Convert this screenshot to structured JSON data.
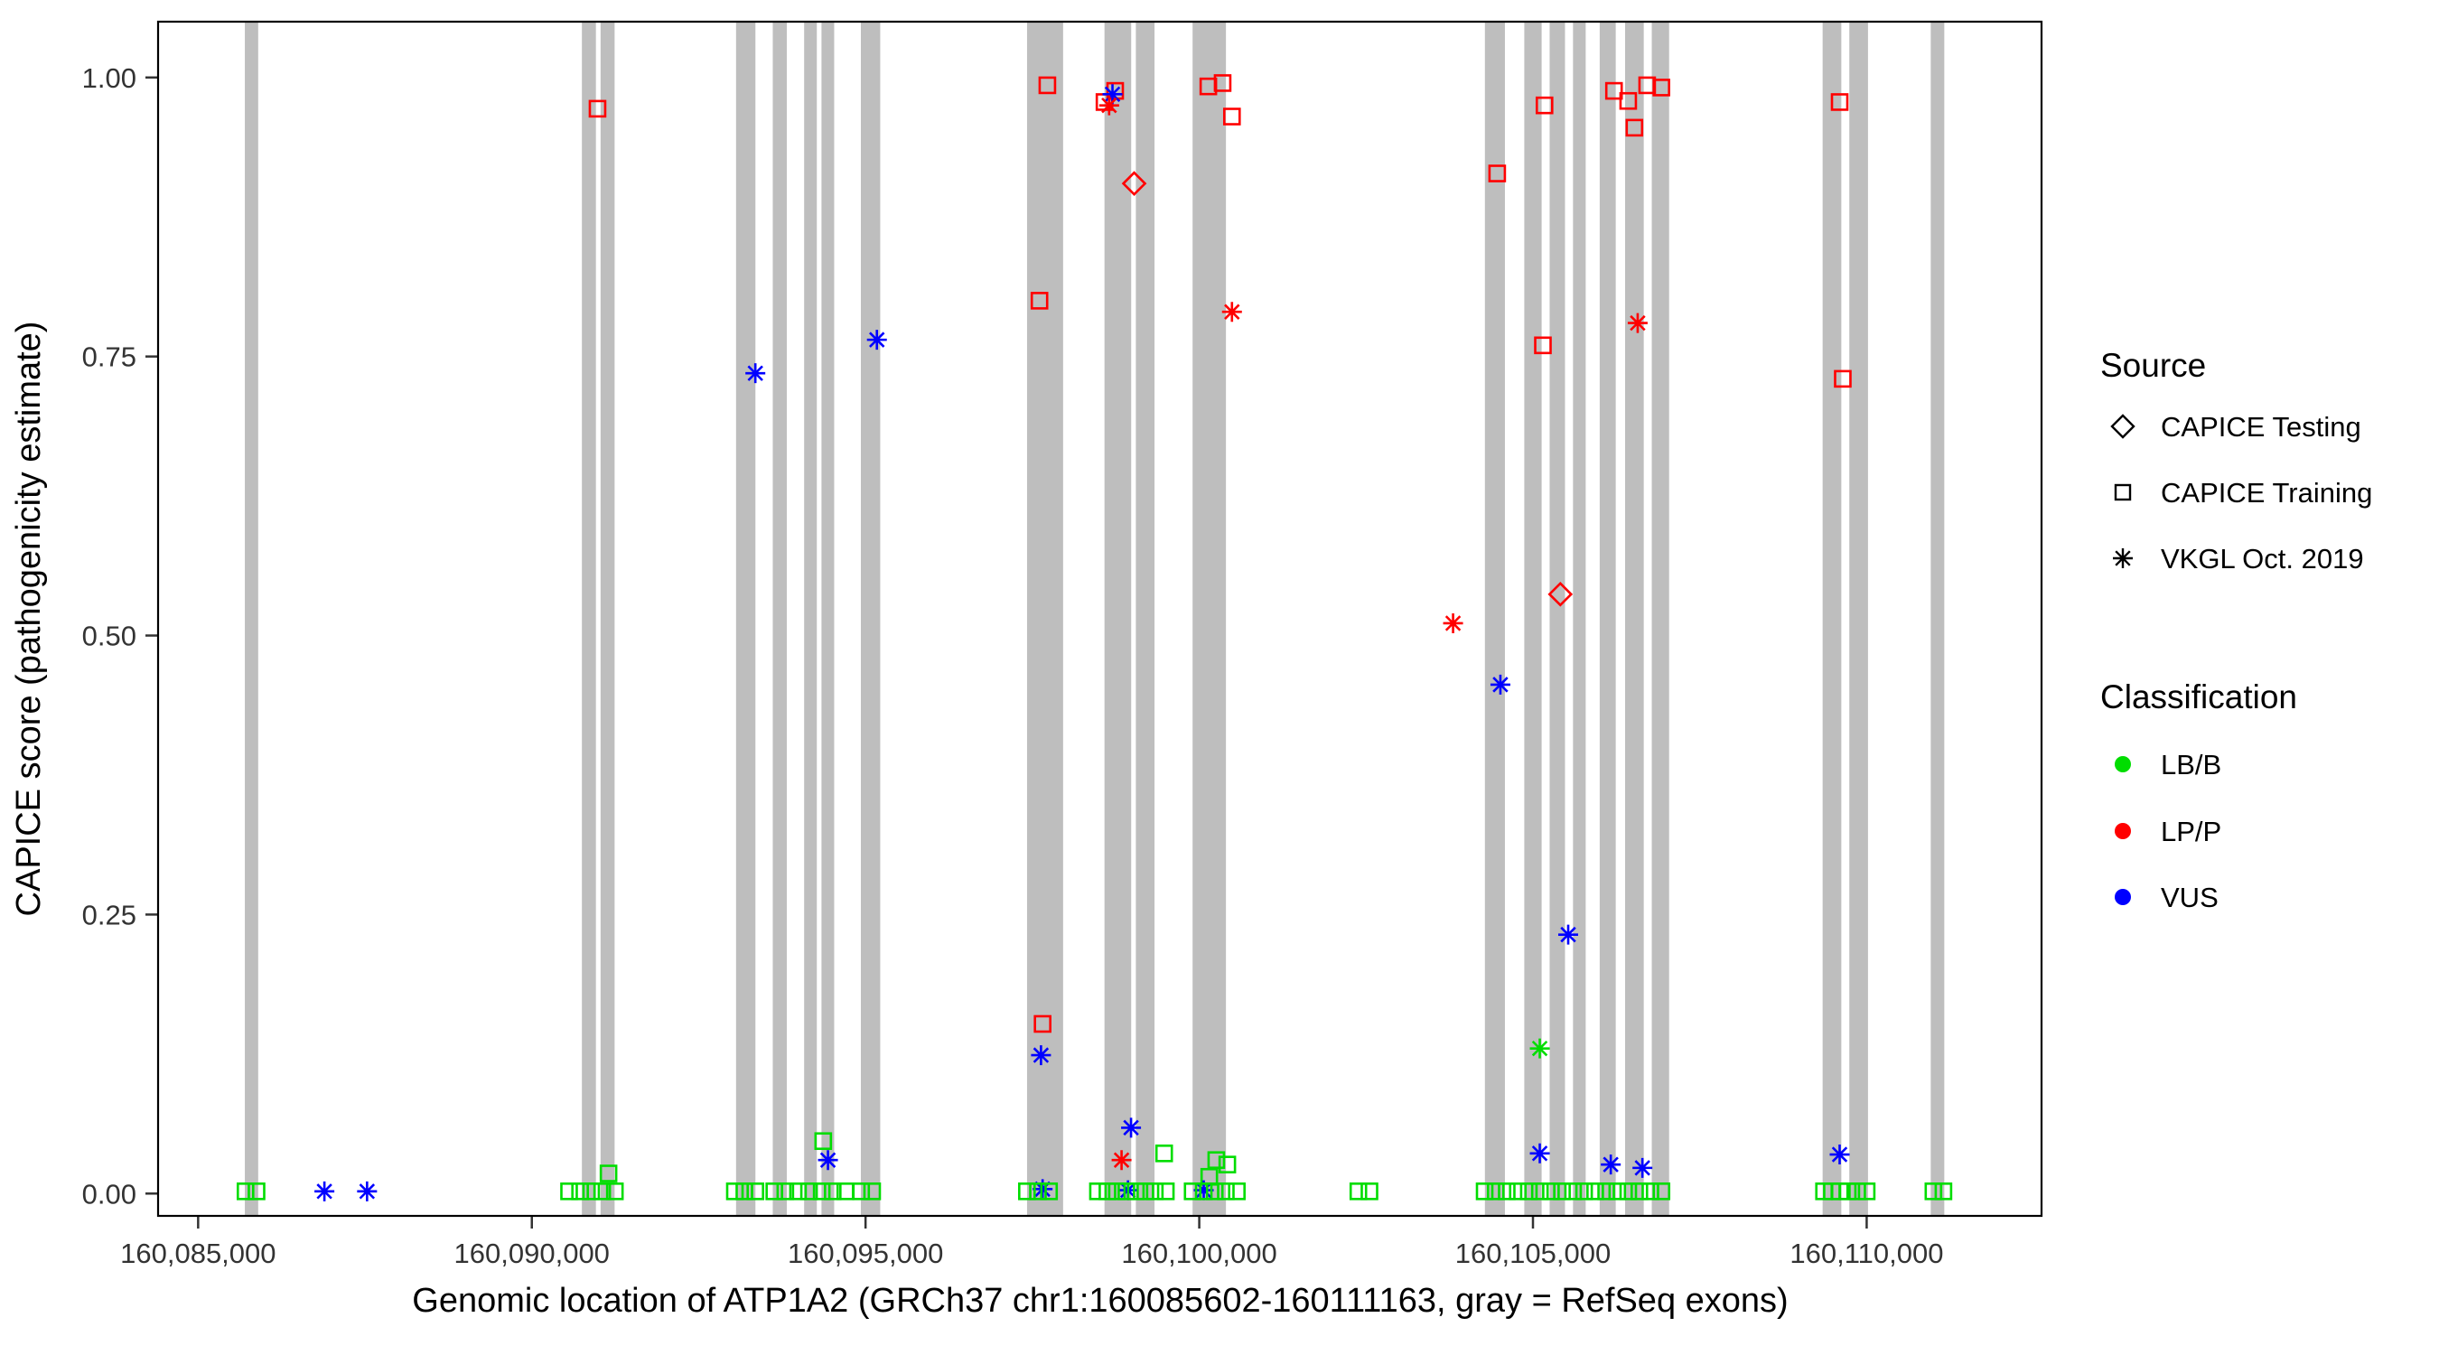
{
  "chart_data": {
    "type": "scatter",
    "title": "",
    "xlabel": "Genomic location of ATP1A2 (GRCh37 chr1:160085602-160111163, gray = RefSeq exons)",
    "ylabel": "CAPICE score (pathogenicity estimate)",
    "xlim": [
      160084400,
      160112620
    ],
    "ylim": [
      -0.02,
      1.05
    ],
    "grid": "off",
    "legend_position": "right",
    "x_tick_values": [
      160085000,
      160090000,
      160095000,
      160100000,
      160105000,
      160110000
    ],
    "x_tick_labels": [
      "160,085,000",
      "160,090,000",
      "160,095,000",
      "160,100,000",
      "160,105,000",
      "160,110,000"
    ],
    "y_tick_values": [
      0.0,
      0.25,
      0.5,
      0.75,
      1.0
    ],
    "y_tick_labels": [
      "0.00",
      "0.25",
      "0.50",
      "0.75",
      "1.00"
    ],
    "exon_color": "#BEBEBE",
    "colors": {
      "LB/B": "#00DD00",
      "LP/P": "#FF0000",
      "VUS": "#0000FF"
    },
    "source_codes": {
      "T": "CAPICE Testing",
      "R": "CAPICE Training",
      "V": "VKGL Oct. 2019"
    },
    "class_codes": {
      "B": "LB/B",
      "P": "LP/P",
      "U": "VUS"
    },
    "shape_by_source": {
      "T": "diamond",
      "R": "square",
      "V": "asterisk"
    },
    "exons": [
      [
        160085700,
        160085900
      ],
      [
        160090750,
        160090960
      ],
      [
        160091030,
        160091240
      ],
      [
        160093060,
        160093350
      ],
      [
        160093610,
        160093820
      ],
      [
        160094080,
        160094270
      ],
      [
        160094340,
        160094530
      ],
      [
        160094930,
        160095220
      ],
      [
        160097420,
        160097960
      ],
      [
        160098580,
        160098980
      ],
      [
        160099050,
        160099330
      ],
      [
        160099900,
        160100400
      ],
      [
        160104280,
        160104580
      ],
      [
        160104870,
        160105130
      ],
      [
        160105250,
        160105480
      ],
      [
        160105600,
        160105790
      ],
      [
        160106000,
        160106240
      ],
      [
        160106380,
        160106660
      ],
      [
        160106780,
        160107040
      ],
      [
        160109340,
        160109620
      ],
      [
        160109740,
        160110020
      ],
      [
        160110960,
        160111163
      ]
    ],
    "point_format": [
      "genomic_position",
      "capice_score",
      "source_code",
      "class_code"
    ],
    "points": [
      [
        160090984,
        0.972,
        "R",
        "P"
      ],
      [
        160097724,
        0.993,
        "R",
        "P"
      ],
      [
        160098580,
        0.978,
        "R",
        "P"
      ],
      [
        160098740,
        0.988,
        "R",
        "P"
      ],
      [
        160098700,
        0.985,
        "V",
        "U"
      ],
      [
        160098650,
        0.975,
        "V",
        "P"
      ],
      [
        160100136,
        0.992,
        "R",
        "P"
      ],
      [
        160100350,
        0.995,
        "R",
        "P"
      ],
      [
        160100490,
        0.965,
        "R",
        "P"
      ],
      [
        160104464,
        0.914,
        "R",
        "P"
      ],
      [
        160105173,
        0.975,
        "R",
        "P"
      ],
      [
        160106214,
        0.988,
        "R",
        "P"
      ],
      [
        160106427,
        0.979,
        "R",
        "P"
      ],
      [
        160106520,
        0.955,
        "R",
        "P"
      ],
      [
        160106711,
        0.993,
        "R",
        "P"
      ],
      [
        160106924,
        0.991,
        "R",
        "P"
      ],
      [
        160109595,
        0.978,
        "R",
        "P"
      ],
      [
        160099025,
        0.905,
        "T",
        "P"
      ],
      [
        160097606,
        0.8,
        "R",
        "P"
      ],
      [
        160100490,
        0.79,
        "V",
        "P"
      ],
      [
        160106569,
        0.78,
        "V",
        "P"
      ],
      [
        160105149,
        0.76,
        "R",
        "P"
      ],
      [
        160109642,
        0.73,
        "R",
        "P"
      ],
      [
        160093349,
        0.735,
        "V",
        "U"
      ],
      [
        160095170,
        0.765,
        "V",
        "U"
      ],
      [
        160103803,
        0.511,
        "V",
        "P"
      ],
      [
        160105410,
        0.537,
        "T",
        "P"
      ],
      [
        160104512,
        0.456,
        "V",
        "U"
      ],
      [
        160105528,
        0.232,
        "V",
        "U"
      ],
      [
        160097653,
        0.152,
        "R",
        "P"
      ],
      [
        160097629,
        0.124,
        "V",
        "U"
      ],
      [
        160105102,
        0.13,
        "V",
        "B"
      ],
      [
        160098978,
        0.059,
        "V",
        "U"
      ],
      [
        160094366,
        0.047,
        "R",
        "B"
      ],
      [
        160094437,
        0.03,
        "V",
        "U"
      ],
      [
        160105102,
        0.036,
        "V",
        "U"
      ],
      [
        160106166,
        0.026,
        "V",
        "U"
      ],
      [
        160106640,
        0.023,
        "V",
        "U"
      ],
      [
        160109595,
        0.035,
        "V",
        "U"
      ],
      [
        160098836,
        0.03,
        "V",
        "P"
      ],
      [
        160091149,
        0.018,
        "R",
        "B"
      ],
      [
        160099474,
        0.036,
        "R",
        "B"
      ],
      [
        160100255,
        0.03,
        "R",
        "B"
      ],
      [
        160100420,
        0.026,
        "R",
        "B"
      ],
      [
        160100150,
        0.015,
        "R",
        "B"
      ],
      [
        160086892,
        0.002,
        "V",
        "U"
      ],
      [
        160087531,
        0.002,
        "V",
        "U"
      ],
      [
        160097653,
        0.004,
        "V",
        "U"
      ],
      [
        160098932,
        0.003,
        "V",
        "U"
      ],
      [
        160100067,
        0.003,
        "V",
        "U"
      ],
      [
        160085710,
        0.002,
        "R",
        "B"
      ],
      [
        160085875,
        0.002,
        "R",
        "B"
      ],
      [
        160090558,
        0.002,
        "R",
        "B"
      ],
      [
        160090723,
        0.002,
        "R",
        "B"
      ],
      [
        160090889,
        0.002,
        "R",
        "B"
      ],
      [
        160091054,
        0.002,
        "R",
        "B"
      ],
      [
        160091244,
        0.002,
        "R",
        "B"
      ],
      [
        160093042,
        0.002,
        "R",
        "B"
      ],
      [
        160093184,
        0.002,
        "R",
        "B"
      ],
      [
        160093349,
        0.002,
        "R",
        "B"
      ],
      [
        160093633,
        0.002,
        "R",
        "B"
      ],
      [
        160093798,
        0.002,
        "R",
        "B"
      ],
      [
        160093988,
        0.002,
        "R",
        "B"
      ],
      [
        160094153,
        0.002,
        "R",
        "B"
      ],
      [
        160094343,
        0.002,
        "R",
        "B"
      ],
      [
        160094508,
        0.002,
        "R",
        "B"
      ],
      [
        160094697,
        0.002,
        "R",
        "B"
      ],
      [
        160094934,
        0.002,
        "R",
        "B"
      ],
      [
        160095099,
        0.002,
        "R",
        "B"
      ],
      [
        160097418,
        0.002,
        "R",
        "B"
      ],
      [
        160097583,
        0.002,
        "R",
        "B"
      ],
      [
        160097749,
        0.002,
        "R",
        "B"
      ],
      [
        160098482,
        0.002,
        "R",
        "B"
      ],
      [
        160098624,
        0.002,
        "R",
        "B"
      ],
      [
        160098766,
        0.002,
        "R",
        "B"
      ],
      [
        160098908,
        0.002,
        "R",
        "B"
      ],
      [
        160099050,
        0.002,
        "R",
        "B"
      ],
      [
        160099192,
        0.002,
        "R",
        "B"
      ],
      [
        160099334,
        0.002,
        "R",
        "B"
      ],
      [
        160099499,
        0.002,
        "R",
        "B"
      ],
      [
        160099901,
        0.002,
        "R",
        "B"
      ],
      [
        160100067,
        0.002,
        "R",
        "B"
      ],
      [
        160100232,
        0.002,
        "R",
        "B"
      ],
      [
        160100398,
        0.002,
        "R",
        "B"
      ],
      [
        160100563,
        0.002,
        "R",
        "B"
      ],
      [
        160102384,
        0.002,
        "R",
        "B"
      ],
      [
        160102550,
        0.002,
        "R",
        "B"
      ],
      [
        160104276,
        0.002,
        "R",
        "B"
      ],
      [
        160104442,
        0.002,
        "R",
        "B"
      ],
      [
        160104607,
        0.002,
        "R",
        "B"
      ],
      [
        160104773,
        0.002,
        "R",
        "B"
      ],
      [
        160104938,
        0.002,
        "R",
        "B"
      ],
      [
        160105104,
        0.002,
        "R",
        "B"
      ],
      [
        160105269,
        0.002,
        "R",
        "B"
      ],
      [
        160105435,
        0.002,
        "R",
        "B"
      ],
      [
        160105601,
        0.002,
        "R",
        "B"
      ],
      [
        160105766,
        0.002,
        "R",
        "B"
      ],
      [
        160105932,
        0.002,
        "R",
        "B"
      ],
      [
        160106097,
        0.002,
        "R",
        "B"
      ],
      [
        160106263,
        0.002,
        "R",
        "B"
      ],
      [
        160106428,
        0.002,
        "R",
        "B"
      ],
      [
        160106594,
        0.002,
        "R",
        "B"
      ],
      [
        160106759,
        0.002,
        "R",
        "B"
      ],
      [
        160106925,
        0.002,
        "R",
        "B"
      ],
      [
        160109361,
        0.002,
        "R",
        "B"
      ],
      [
        160109479,
        0.002,
        "R",
        "B"
      ],
      [
        160109598,
        0.002,
        "R",
        "B"
      ],
      [
        160109716,
        0.002,
        "R",
        "B"
      ],
      [
        160109858,
        0.002,
        "R",
        "B"
      ],
      [
        160110000,
        0.002,
        "R",
        "B"
      ],
      [
        160111000,
        0.002,
        "R",
        "B"
      ],
      [
        160111150,
        0.002,
        "R",
        "B"
      ]
    ]
  },
  "legend": {
    "source": {
      "title": "Source",
      "items": [
        {
          "label": "CAPICE Testing",
          "shape": "diamond"
        },
        {
          "label": "CAPICE Training",
          "shape": "square"
        },
        {
          "label": "VKGL Oct. 2019",
          "shape": "asterisk"
        }
      ]
    },
    "classification": {
      "title": "Classification",
      "items": [
        {
          "label": "LB/B",
          "color": "#00DD00"
        },
        {
          "label": "LP/P",
          "color": "#FF0000"
        },
        {
          "label": "VUS",
          "color": "#0000FF"
        }
      ]
    }
  }
}
